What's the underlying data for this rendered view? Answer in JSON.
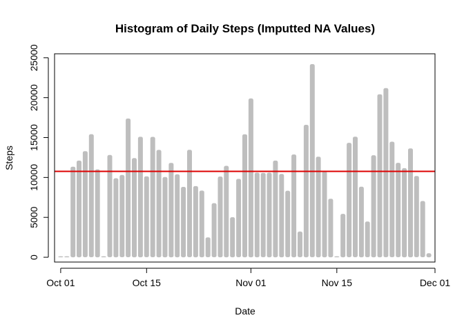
{
  "chart_data": {
    "type": "bar",
    "title": "Histogram of Daily Steps (Imputted NA Values)",
    "xlabel": "Date",
    "ylabel": "Steps",
    "x_axis": "date",
    "x_range": [
      "2012-09-30",
      "2012-12-01"
    ],
    "ylim": [
      -600,
      25500
    ],
    "x_ticks": [
      {
        "date": "2012-10-01",
        "label": "Oct 01"
      },
      {
        "date": "2012-10-15",
        "label": "Oct 15"
      },
      {
        "date": "2012-11-01",
        "label": "Nov 01"
      },
      {
        "date": "2012-11-15",
        "label": "Nov 15"
      },
      {
        "date": "2012-12-01",
        "label": "Dec 01"
      }
    ],
    "y_ticks": [
      0,
      5000,
      10000,
      15000,
      20000,
      25000
    ],
    "x": [
      "2012-10-01",
      "2012-10-02",
      "2012-10-03",
      "2012-10-04",
      "2012-10-05",
      "2012-10-06",
      "2012-10-07",
      "2012-10-08",
      "2012-10-09",
      "2012-10-10",
      "2012-10-11",
      "2012-10-12",
      "2012-10-13",
      "2012-10-14",
      "2012-10-15",
      "2012-10-16",
      "2012-10-17",
      "2012-10-18",
      "2012-10-19",
      "2012-10-20",
      "2012-10-21",
      "2012-10-22",
      "2012-10-23",
      "2012-10-24",
      "2012-10-25",
      "2012-10-26",
      "2012-10-27",
      "2012-10-28",
      "2012-10-29",
      "2012-10-30",
      "2012-10-31",
      "2012-11-01",
      "2012-11-02",
      "2012-11-03",
      "2012-11-04",
      "2012-11-05",
      "2012-11-06",
      "2012-11-07",
      "2012-11-08",
      "2012-11-09",
      "2012-11-10",
      "2012-11-11",
      "2012-11-12",
      "2012-11-13",
      "2012-11-14",
      "2012-11-15",
      "2012-11-16",
      "2012-11-17",
      "2012-11-18",
      "2012-11-19",
      "2012-11-20",
      "2012-11-21",
      "2012-11-22",
      "2012-11-23",
      "2012-11-24",
      "2012-11-25",
      "2012-11-26",
      "2012-11-27",
      "2012-11-28",
      "2012-11-29",
      "2012-11-30"
    ],
    "values": [
      126,
      126,
      11352,
      12116,
      13294,
      15420,
      11015,
      126,
      12811,
      9900,
      10304,
      17382,
      12426,
      15098,
      10139,
      15084,
      13452,
      10056,
      11829,
      10395,
      8821,
      13460,
      8918,
      8355,
      2492,
      6778,
      10119,
      11458,
      5018,
      9819,
      15414,
      19900,
      10600,
      10571,
      10600,
      12115,
      10439,
      8334,
      12883,
      3219,
      16600,
      24200,
      12608,
      10765,
      7336,
      126,
      5441,
      14339,
      15110,
      8841,
      4472,
      12787,
      20427,
      21194,
      14478,
      11834,
      11162,
      13646,
      10183,
      7047,
      500
    ],
    "reference_line": {
      "value": 10766,
      "color": "#dd0000"
    },
    "bar_color": "#bebebe",
    "grid": false
  }
}
